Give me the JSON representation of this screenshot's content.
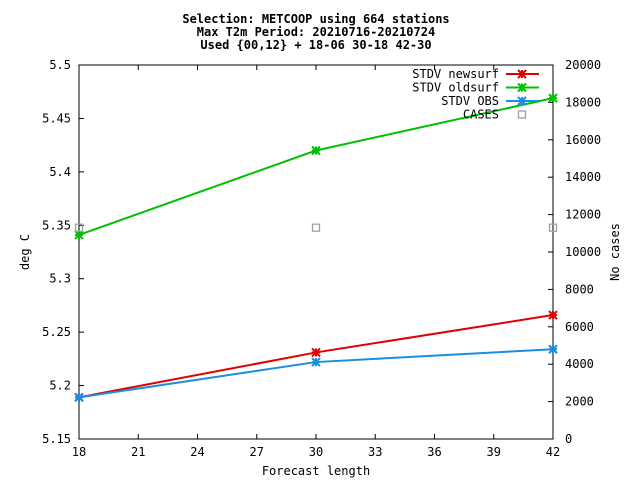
{
  "chart_data": {
    "type": "line",
    "title": [
      "Selection: METCOOP using   664 stations",
      "Max T2m   Period: 20210716-20210724",
      "Used {00,12} + 18-06 30-18 42-30"
    ],
    "xlabel": "Forecast length",
    "ylabel": "deg C",
    "y2label": "No cases",
    "x_ticks": [
      18,
      21,
      24,
      27,
      30,
      33,
      36,
      39,
      42
    ],
    "xlim": [
      18,
      42
    ],
    "ylim": [
      5.15,
      5.5
    ],
    "y_ticks": [
      5.15,
      5.2,
      5.25,
      5.3,
      5.35,
      5.4,
      5.45,
      5.5
    ],
    "y2lim": [
      0,
      20000
    ],
    "y2_ticks": [
      0,
      2000,
      4000,
      6000,
      8000,
      10000,
      12000,
      14000,
      16000,
      18000,
      20000
    ],
    "grid": false,
    "legend_position": "top-right",
    "series": [
      {
        "name": "STDV newsurf",
        "color": "#e00000",
        "marker": "star",
        "axis": "y",
        "x": [
          18,
          30,
          42
        ],
        "values": [
          5.189,
          5.231,
          5.266
        ]
      },
      {
        "name": "STDV oldsurf",
        "color": "#00c000",
        "marker": "star",
        "axis": "y",
        "x": [
          18,
          30,
          42
        ],
        "values": [
          5.341,
          5.42,
          5.469
        ]
      },
      {
        "name": "STDV OBS",
        "color": "#1a8ee0",
        "marker": "star",
        "axis": "y",
        "x": [
          18,
          30,
          42
        ],
        "values": [
          5.189,
          5.222,
          5.234
        ]
      },
      {
        "name": "CASES",
        "color": "#a0a0a0",
        "marker": "square",
        "axis": "y2",
        "x": [
          18,
          30,
          42
        ],
        "values": [
          11300,
          11300,
          11300
        ]
      }
    ]
  }
}
